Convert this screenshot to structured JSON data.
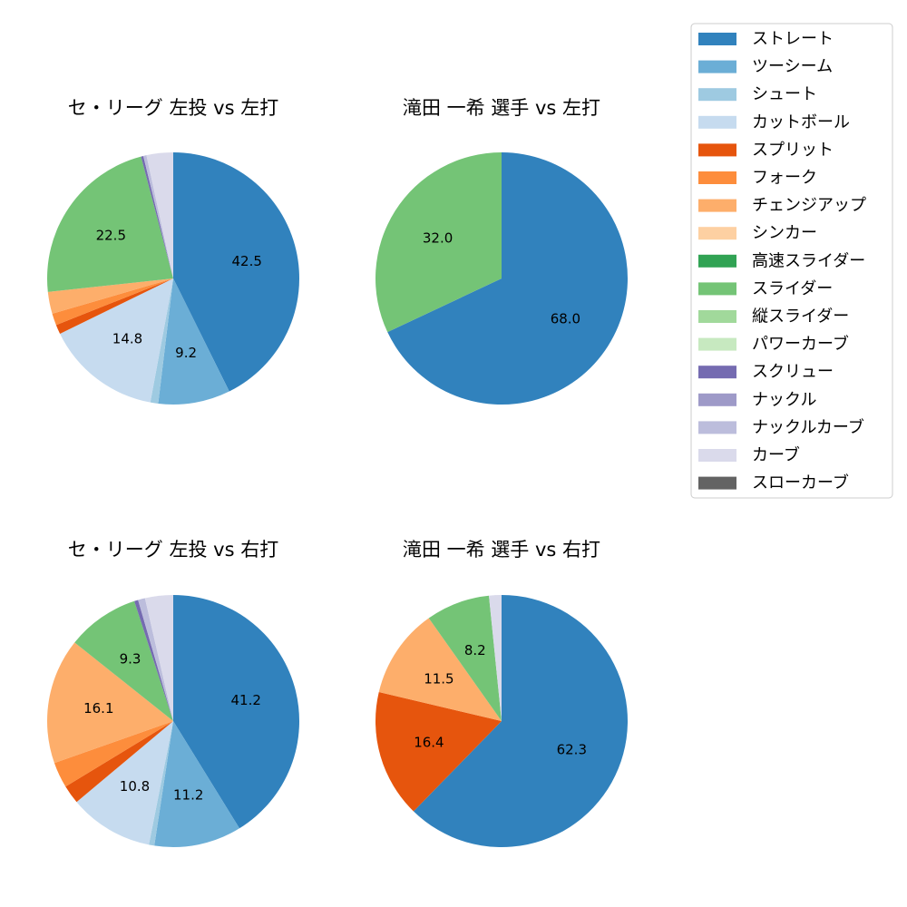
{
  "legend": {
    "items": [
      {
        "label": "ストレート",
        "color": "#3182bd"
      },
      {
        "label": "ツーシーム",
        "color": "#6baed6"
      },
      {
        "label": "シュート",
        "color": "#9ecae1"
      },
      {
        "label": "カットボール",
        "color": "#c6dbef"
      },
      {
        "label": "スプリット",
        "color": "#e6550d"
      },
      {
        "label": "フォーク",
        "color": "#fd8d3c"
      },
      {
        "label": "チェンジアップ",
        "color": "#fdae6b"
      },
      {
        "label": "シンカー",
        "color": "#fdd0a2"
      },
      {
        "label": "高速スライダー",
        "color": "#31a354"
      },
      {
        "label": "スライダー",
        "color": "#74c476"
      },
      {
        "label": "縦スライダー",
        "color": "#a1d99b"
      },
      {
        "label": "パワーカーブ",
        "color": "#c7e9c0"
      },
      {
        "label": "スクリュー",
        "color": "#756bb1"
      },
      {
        "label": "ナックル",
        "color": "#9e9ac8"
      },
      {
        "label": "ナックルカーブ",
        "color": "#bcbddc"
      },
      {
        "label": "カーブ",
        "color": "#dadaeb"
      },
      {
        "label": "スローカーブ",
        "color": "#636363"
      }
    ]
  },
  "chart_data": [
    {
      "type": "pie",
      "title": "セ・リーグ 左投 vs 左打",
      "slices": [
        {
          "category": "ストレート",
          "value": 42.5,
          "label": "42.5"
        },
        {
          "category": "ツーシーム",
          "value": 9.2,
          "label": "9.2"
        },
        {
          "category": "シュート",
          "value": 1.0,
          "label": ""
        },
        {
          "category": "カットボール",
          "value": 14.8,
          "label": "14.8"
        },
        {
          "category": "スプリット",
          "value": 1.2,
          "label": ""
        },
        {
          "category": "フォーク",
          "value": 1.5,
          "label": ""
        },
        {
          "category": "チェンジアップ",
          "value": 2.8,
          "label": ""
        },
        {
          "category": "スライダー",
          "value": 22.5,
          "label": "22.5"
        },
        {
          "category": "スクリュー",
          "value": 0.3,
          "label": ""
        },
        {
          "category": "ナックルカーブ",
          "value": 0.4,
          "label": ""
        },
        {
          "category": "カーブ",
          "value": 3.4,
          "label": ""
        }
      ]
    },
    {
      "type": "pie",
      "title": "滝田 一希 選手 vs 左打",
      "slices": [
        {
          "category": "ストレート",
          "value": 68.0,
          "label": "68.0"
        },
        {
          "category": "スライダー",
          "value": 32.0,
          "label": "32.0"
        }
      ]
    },
    {
      "type": "pie",
      "title": "セ・リーグ 左投 vs 右打",
      "slices": [
        {
          "category": "ストレート",
          "value": 41.2,
          "label": "41.2"
        },
        {
          "category": "ツーシーム",
          "value": 11.2,
          "label": "11.2"
        },
        {
          "category": "シュート",
          "value": 0.7,
          "label": ""
        },
        {
          "category": "カットボール",
          "value": 10.8,
          "label": "10.8"
        },
        {
          "category": "スプリット",
          "value": 2.4,
          "label": ""
        },
        {
          "category": "フォーク",
          "value": 3.3,
          "label": ""
        },
        {
          "category": "チェンジアップ",
          "value": 16.1,
          "label": "16.1"
        },
        {
          "category": "スライダー",
          "value": 9.3,
          "label": "9.3"
        },
        {
          "category": "スクリュー",
          "value": 0.5,
          "label": ""
        },
        {
          "category": "ナックルカーブ",
          "value": 0.9,
          "label": ""
        },
        {
          "category": "カーブ",
          "value": 3.6,
          "label": ""
        }
      ]
    },
    {
      "type": "pie",
      "title": "滝田 一希 選手 vs 右打",
      "slices": [
        {
          "category": "ストレート",
          "value": 62.3,
          "label": "62.3"
        },
        {
          "category": "スプリット",
          "value": 16.4,
          "label": "16.4"
        },
        {
          "category": "チェンジアップ",
          "value": 11.5,
          "label": "11.5"
        },
        {
          "category": "スライダー",
          "value": 8.2,
          "label": "8.2"
        },
        {
          "category": "カーブ",
          "value": 1.6,
          "label": ""
        }
      ]
    }
  ]
}
